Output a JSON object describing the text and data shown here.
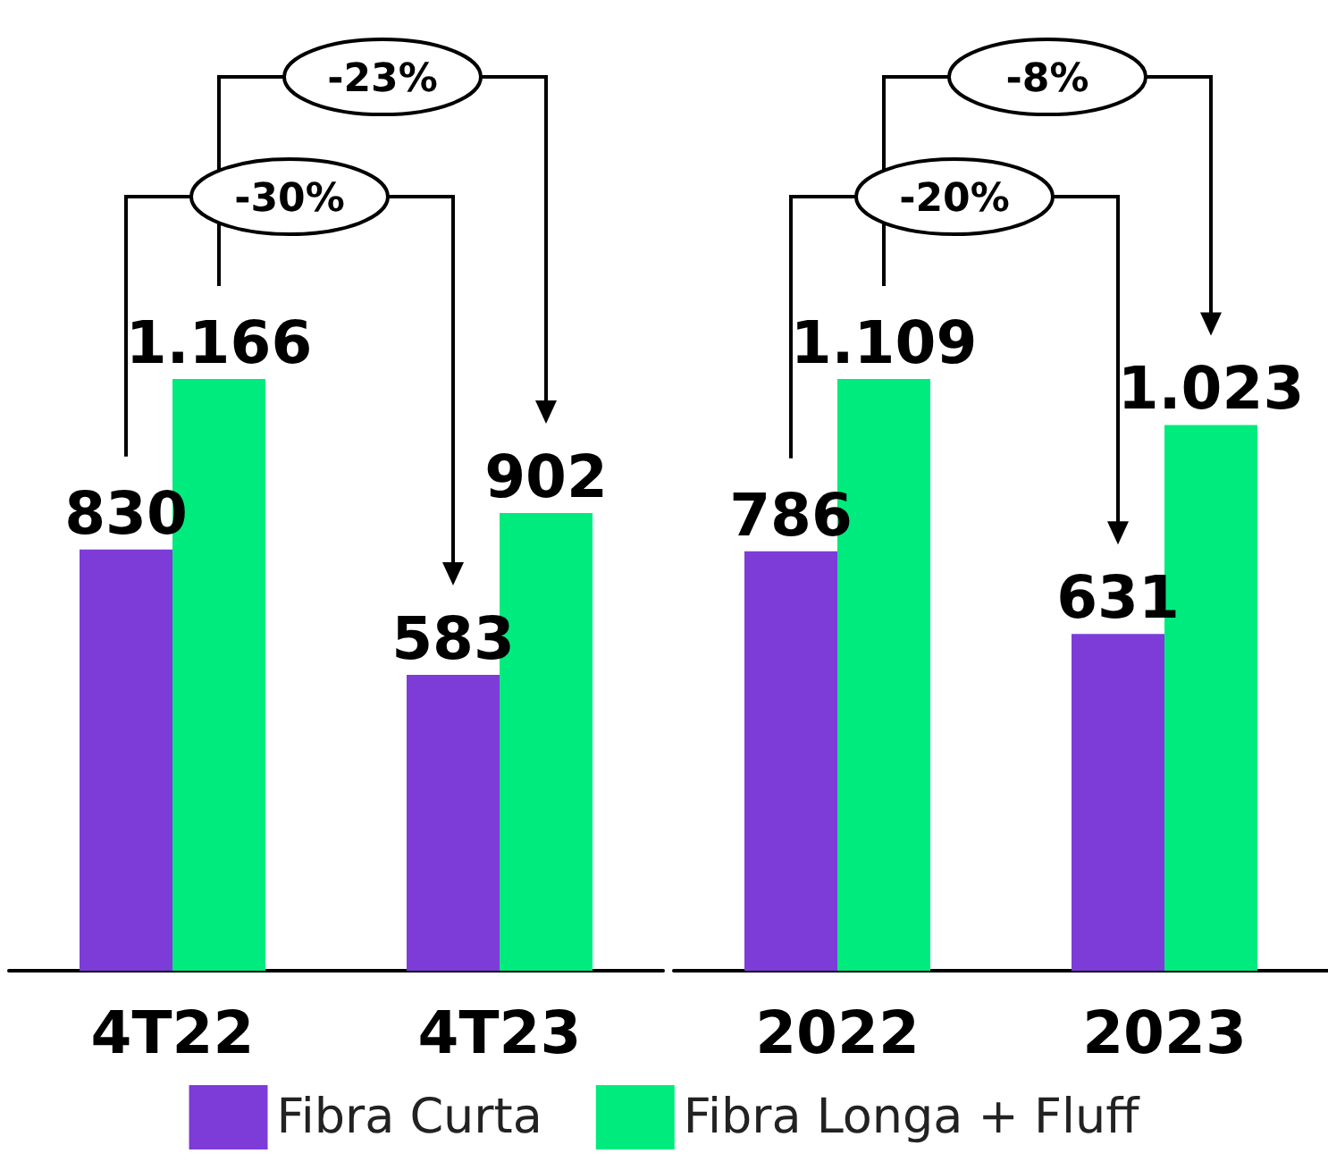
{
  "chart_data": [
    {
      "type": "bar",
      "categories": [
        "4T22",
        "4T23"
      ],
      "series": [
        {
          "name": "Fibra Curta",
          "color": "#7d3cd8",
          "values": [
            830,
            583
          ],
          "value_labels": [
            "830",
            "583"
          ]
        },
        {
          "name": "Fibra Longa + Fluff",
          "color": "#00eb7e",
          "values": [
            1166,
            902
          ],
          "value_labels": [
            "1.166",
            "902"
          ]
        }
      ],
      "annotations": [
        "-23%",
        "-30%"
      ],
      "legend": "bottom"
    },
    {
      "type": "bar",
      "categories": [
        "2022",
        "2023"
      ],
      "series": [
        {
          "color": "#7d3cd8",
          "values": [
            786,
            631
          ],
          "value_labels": [
            "786",
            "631"
          ]
        },
        {
          "color": "#00eb7e",
          "values": [
            1109,
            1023
          ],
          "value_labels": [
            "1.109",
            "1.023"
          ]
        }
      ],
      "annotations": [
        "-8%",
        "-20%"
      ]
    }
  ]
}
